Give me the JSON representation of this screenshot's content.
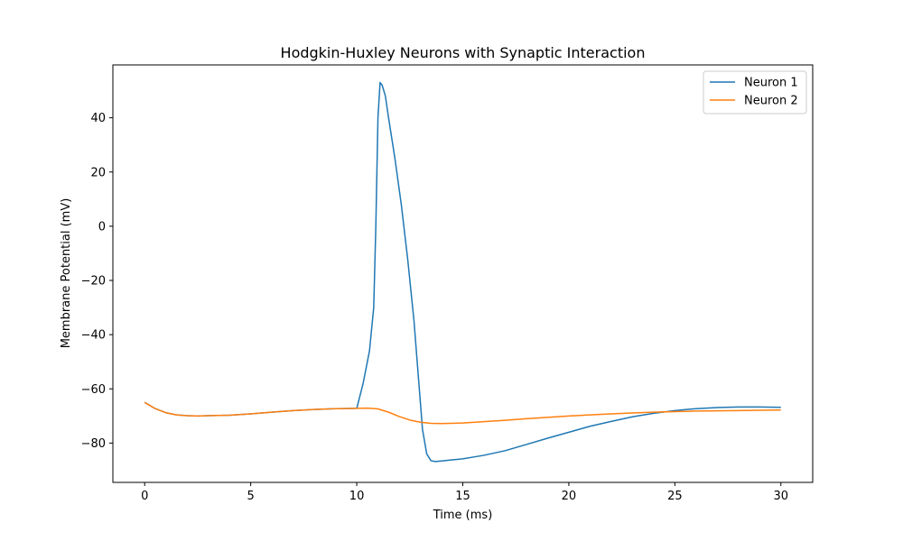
{
  "chart_data": {
    "type": "line",
    "title": "Hodgkin-Huxley Neurons with Synaptic Interaction",
    "xlabel": "Time (ms)",
    "ylabel": "Membrane Potential (mV)",
    "xlim": [
      -1.5,
      31.5
    ],
    "ylim": [
      -94.5,
      59.5
    ],
    "xticks": [
      0,
      5,
      10,
      15,
      20,
      25,
      30
    ],
    "yticks": [
      -80,
      -60,
      -40,
      -20,
      0,
      20,
      40
    ],
    "xtick_labels": [
      "0",
      "5",
      "10",
      "15",
      "20",
      "25",
      "30"
    ],
    "ytick_labels": [
      "−80",
      "−60",
      "−40",
      "−20",
      "0",
      "20",
      "40"
    ],
    "grid": false,
    "legend_position": "top-right",
    "series": [
      {
        "name": "Neuron 1",
        "color": "#1f77b4",
        "x": [
          0,
          0.5,
          1,
          1.5,
          2,
          2.5,
          3,
          4,
          5,
          6,
          7,
          8,
          9,
          10,
          10.3,
          10.6,
          10.8,
          10.9,
          11.0,
          11.1,
          11.2,
          11.35,
          11.5,
          11.8,
          12.1,
          12.4,
          12.7,
          12.9,
          13.1,
          13.3,
          13.5,
          13.7,
          14,
          14.5,
          15,
          16,
          17,
          18,
          19,
          20,
          21,
          22,
          23,
          24,
          25,
          26,
          27,
          28,
          29,
          30
        ],
        "y": [
          -65,
          -67.3,
          -68.8,
          -69.6,
          -69.9,
          -70.0,
          -69.9,
          -69.7,
          -69.2,
          -68.6,
          -68.0,
          -67.6,
          -67.3,
          -67.2,
          -58,
          -46,
          -30,
          0,
          40,
          53,
          52,
          48,
          40,
          25,
          8,
          -12,
          -35,
          -55,
          -75,
          -84,
          -86.5,
          -86.8,
          -86.6,
          -86.2,
          -85.8,
          -84.5,
          -82.8,
          -80.5,
          -78.2,
          -76,
          -73.8,
          -72,
          -70.3,
          -69,
          -68,
          -67.3,
          -66.9,
          -66.7,
          -66.7,
          -66.8
        ]
      },
      {
        "name": "Neuron 2",
        "color": "#ff7f0e",
        "x": [
          0,
          0.5,
          1,
          1.5,
          2,
          2.5,
          3,
          4,
          5,
          6,
          7,
          8,
          9,
          10,
          10.5,
          11,
          11.5,
          12,
          12.5,
          13,
          13.5,
          14,
          15,
          16,
          17,
          18,
          19,
          20,
          21,
          22,
          23,
          24,
          25,
          26,
          27,
          28,
          29,
          30
        ],
        "y": [
          -65,
          -67.3,
          -68.8,
          -69.6,
          -69.9,
          -70.0,
          -69.9,
          -69.7,
          -69.2,
          -68.6,
          -68.0,
          -67.6,
          -67.3,
          -67.2,
          -67.1,
          -67.4,
          -68.6,
          -70.2,
          -71.5,
          -72.3,
          -72.7,
          -72.8,
          -72.6,
          -72.1,
          -71.6,
          -71.0,
          -70.5,
          -70.0,
          -69.6,
          -69.2,
          -68.9,
          -68.6,
          -68.4,
          -68.2,
          -68.1,
          -68.0,
          -67.9,
          -67.8
        ]
      }
    ]
  }
}
